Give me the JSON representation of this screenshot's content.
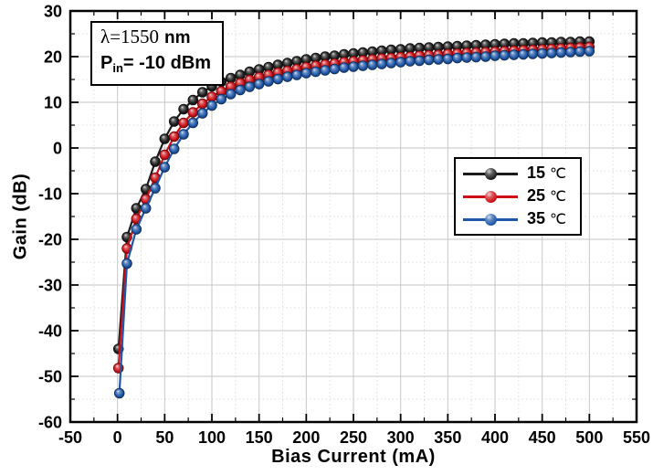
{
  "figure": {
    "background_color": "#ffffff",
    "frame_color": "#000000",
    "major_grid_color": "#c6c6c6",
    "minor_grid_color": "#dcdcdc",
    "annotation": {
      "line1_serif": "λ=1550",
      "line1_unit": "nm",
      "line2_main": "P",
      "line2_sub": "in",
      "line2_rest": "= -10 dBm"
    }
  },
  "chart_data": {
    "type": "line",
    "title": "",
    "xlabel": "Bias Current (mA)",
    "ylabel": "Gain (dB)",
    "xlim": [
      -50,
      550
    ],
    "ylim": [
      -60,
      30
    ],
    "x_major_ticks": [
      -50,
      0,
      50,
      100,
      150,
      200,
      250,
      300,
      350,
      400,
      450,
      500,
      550
    ],
    "y_major_ticks": [
      30,
      20,
      10,
      0,
      -10,
      -20,
      -30,
      -40,
      -50,
      -60
    ],
    "x_minor_step": 25,
    "y_minor_step": 5,
    "grid": "major solid + minor dotted",
    "legend_position": "right-middle",
    "marker_style": "3d-sphere",
    "series": [
      {
        "name": "15 ℃",
        "color": "#1c1c1c",
        "points": [
          [
            1,
            -44.0
          ],
          [
            10,
            -19.5
          ],
          [
            20,
            -13.2
          ],
          [
            30,
            -9.0
          ],
          [
            40,
            -3.0
          ],
          [
            50,
            2.0
          ],
          [
            60,
            5.8
          ],
          [
            70,
            8.5
          ],
          [
            80,
            10.5
          ],
          [
            90,
            12.2
          ],
          [
            100,
            13.5
          ],
          [
            110,
            14.5
          ],
          [
            120,
            15.3
          ],
          [
            130,
            16.0
          ],
          [
            140,
            16.7
          ],
          [
            150,
            17.2
          ],
          [
            160,
            17.7
          ],
          [
            170,
            18.2
          ],
          [
            180,
            18.6
          ],
          [
            190,
            19.0
          ],
          [
            200,
            19.4
          ],
          [
            210,
            19.7
          ],
          [
            220,
            20.0
          ],
          [
            230,
            20.2
          ],
          [
            240,
            20.5
          ],
          [
            250,
            20.7
          ],
          [
            260,
            20.9
          ],
          [
            270,
            21.1
          ],
          [
            280,
            21.3
          ],
          [
            290,
            21.5
          ],
          [
            300,
            21.6
          ],
          [
            310,
            21.8
          ],
          [
            320,
            21.9
          ],
          [
            330,
            22.0
          ],
          [
            340,
            22.1
          ],
          [
            350,
            22.2
          ],
          [
            360,
            22.3
          ],
          [
            370,
            22.4
          ],
          [
            380,
            22.5
          ],
          [
            390,
            22.6
          ],
          [
            400,
            22.7
          ],
          [
            410,
            22.8
          ],
          [
            420,
            22.9
          ],
          [
            430,
            22.9
          ],
          [
            440,
            23.0
          ],
          [
            450,
            23.1
          ],
          [
            460,
            23.1
          ],
          [
            470,
            23.2
          ],
          [
            480,
            23.2
          ],
          [
            490,
            23.3
          ],
          [
            500,
            23.3
          ]
        ]
      },
      {
        "name": "25 ℃",
        "color": "#cc1016",
        "points": [
          [
            1,
            -48.2
          ],
          [
            10,
            -22.0
          ],
          [
            20,
            -15.5
          ],
          [
            30,
            -11.2
          ],
          [
            40,
            -6.5
          ],
          [
            50,
            -1.5
          ],
          [
            60,
            2.5
          ],
          [
            70,
            5.5
          ],
          [
            80,
            7.8
          ],
          [
            90,
            9.7
          ],
          [
            100,
            11.2
          ],
          [
            110,
            12.4
          ],
          [
            120,
            13.4
          ],
          [
            130,
            14.2
          ],
          [
            140,
            14.9
          ],
          [
            150,
            15.5
          ],
          [
            160,
            16.0
          ],
          [
            170,
            16.5
          ],
          [
            180,
            16.9
          ],
          [
            190,
            17.3
          ],
          [
            200,
            17.7
          ],
          [
            210,
            18.0
          ],
          [
            220,
            18.3
          ],
          [
            230,
            18.5
          ],
          [
            240,
            18.8
          ],
          [
            250,
            19.0
          ],
          [
            260,
            19.2
          ],
          [
            270,
            19.4
          ],
          [
            280,
            19.6
          ],
          [
            290,
            19.7
          ],
          [
            300,
            19.9
          ],
          [
            310,
            20.0
          ],
          [
            320,
            20.2
          ],
          [
            330,
            20.3
          ],
          [
            340,
            20.4
          ],
          [
            350,
            20.6
          ],
          [
            360,
            20.7
          ],
          [
            370,
            20.8
          ],
          [
            380,
            20.9
          ],
          [
            390,
            21.0
          ],
          [
            400,
            21.1
          ],
          [
            410,
            21.2
          ],
          [
            420,
            21.3
          ],
          [
            430,
            21.4
          ],
          [
            440,
            21.5
          ],
          [
            450,
            21.6
          ],
          [
            460,
            21.7
          ],
          [
            470,
            21.8
          ],
          [
            480,
            21.9
          ],
          [
            490,
            22.0
          ],
          [
            500,
            22.1
          ]
        ]
      },
      {
        "name": "35 ℃",
        "color": "#1f57a8",
        "points": [
          [
            2,
            -53.7
          ],
          [
            10,
            -25.3
          ],
          [
            20,
            -17.8
          ],
          [
            30,
            -13.2
          ],
          [
            40,
            -8.8
          ],
          [
            50,
            -4.2
          ],
          [
            60,
            -0.2
          ],
          [
            70,
            3.0
          ],
          [
            80,
            5.5
          ],
          [
            90,
            7.6
          ],
          [
            100,
            9.3
          ],
          [
            110,
            10.7
          ],
          [
            120,
            11.8
          ],
          [
            130,
            12.7
          ],
          [
            140,
            13.4
          ],
          [
            150,
            14.0
          ],
          [
            160,
            14.6
          ],
          [
            170,
            15.1
          ],
          [
            180,
            15.6
          ],
          [
            190,
            16.0
          ],
          [
            200,
            16.4
          ],
          [
            210,
            16.7
          ],
          [
            220,
            17.0
          ],
          [
            230,
            17.3
          ],
          [
            240,
            17.6
          ],
          [
            250,
            17.8
          ],
          [
            260,
            18.0
          ],
          [
            270,
            18.2
          ],
          [
            280,
            18.4
          ],
          [
            290,
            18.6
          ],
          [
            300,
            18.8
          ],
          [
            310,
            19.0
          ],
          [
            320,
            19.1
          ],
          [
            330,
            19.3
          ],
          [
            340,
            19.4
          ],
          [
            350,
            19.5
          ],
          [
            360,
            19.7
          ],
          [
            370,
            19.8
          ],
          [
            380,
            19.9
          ],
          [
            390,
            20.0
          ],
          [
            400,
            20.2
          ],
          [
            410,
            20.3
          ],
          [
            420,
            20.4
          ],
          [
            430,
            20.5
          ],
          [
            440,
            20.6
          ],
          [
            450,
            20.7
          ],
          [
            460,
            20.8
          ],
          [
            470,
            20.9
          ],
          [
            480,
            21.0
          ],
          [
            490,
            21.1
          ],
          [
            500,
            21.2
          ]
        ]
      }
    ]
  }
}
